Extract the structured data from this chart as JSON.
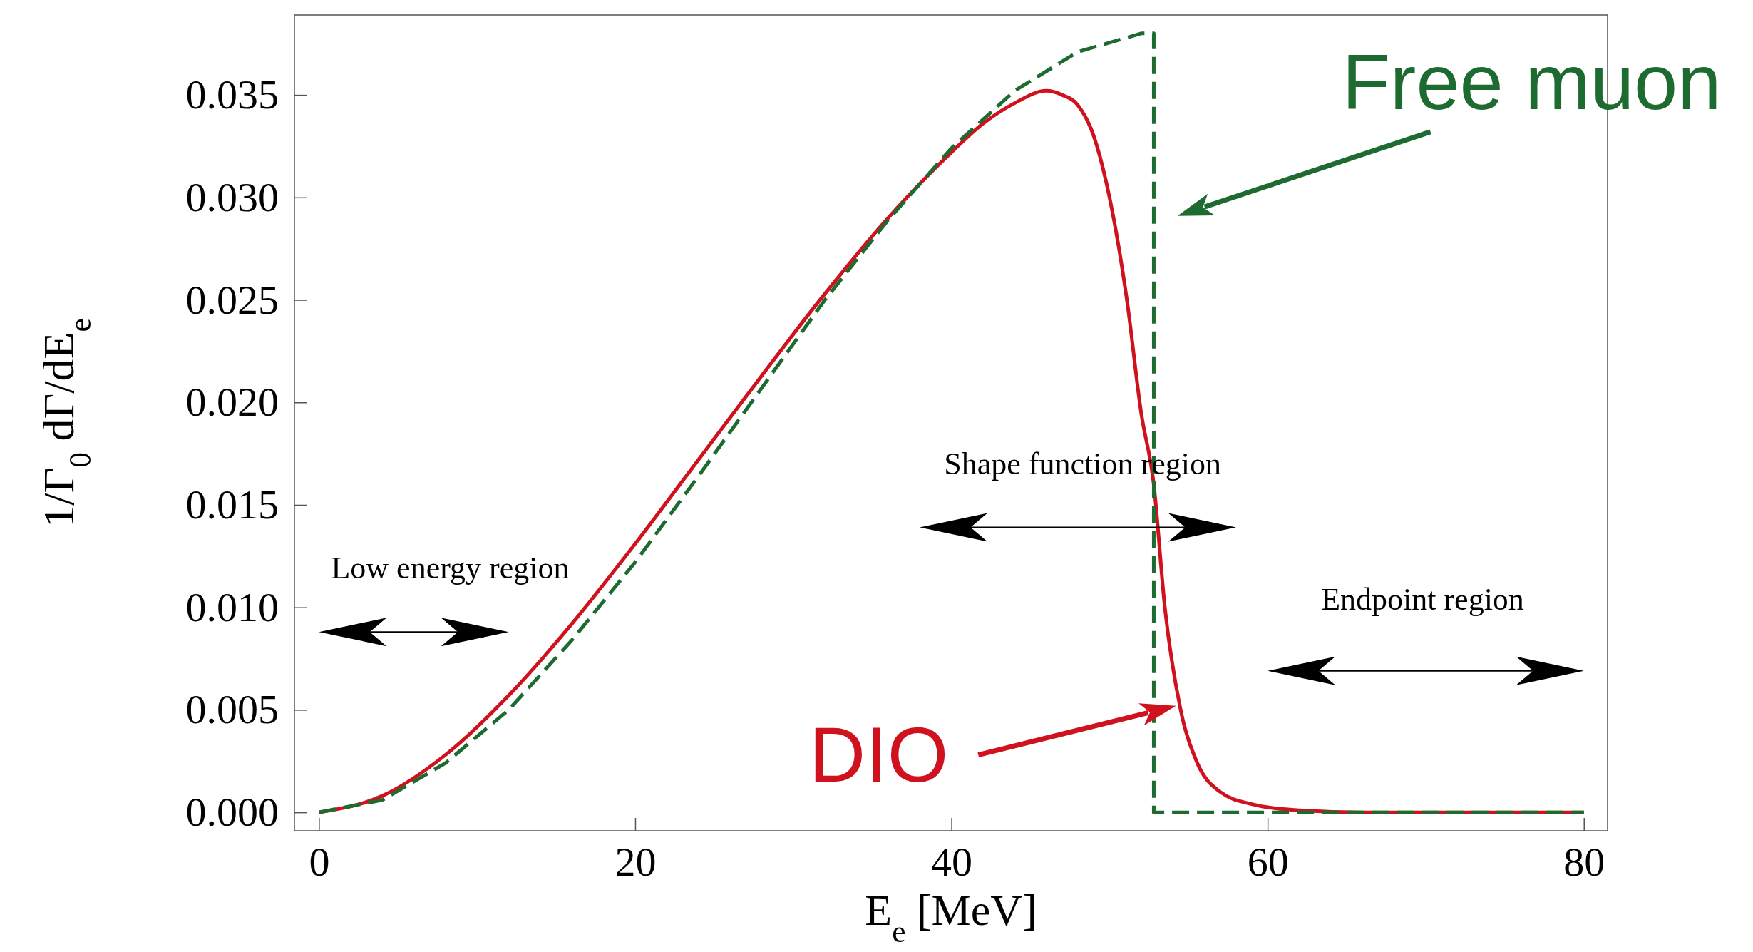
{
  "chart_data": {
    "type": "line",
    "xlabel": "E$_{e}$ [MeV]",
    "ylabel": "1/Γ$_{0}$ dΓ/dE$_{e}$",
    "xlim": [
      -1.55,
      81.5
    ],
    "ylim": [
      -0.0009,
      0.0389
    ],
    "xticks": [
      0,
      20,
      40,
      60,
      80
    ],
    "yticks": [
      {
        "value": 0,
        "label": "0.000"
      },
      {
        "value": 0.005,
        "label": "0.005"
      },
      {
        "value": 0.01,
        "label": "0.010"
      },
      {
        "value": 0.015,
        "label": "0.015"
      },
      {
        "value": 0.02,
        "label": "0.020"
      },
      {
        "value": 0.025,
        "label": "0.025"
      },
      {
        "value": 0.03,
        "label": "0.030"
      },
      {
        "value": 0.035,
        "label": "0.035"
      }
    ],
    "grid": false,
    "series": [
      {
        "name": "Free muon",
        "color": "#1e6b32",
        "line_style": "dashed",
        "x": [
          0,
          4,
          8,
          12,
          16,
          20,
          24,
          28,
          32,
          36,
          40,
          44,
          48,
          52,
          52.8,
          52.8,
          80
        ],
        "values": [
          0,
          0.0006,
          0.0024,
          0.005,
          0.0084,
          0.0122,
          0.0164,
          0.0207,
          0.025,
          0.0289,
          0.0324,
          0.0352,
          0.0371,
          0.038,
          0.038,
          0,
          0
        ]
      },
      {
        "name": "DIO",
        "color": "#d0121f",
        "line_style": "solid",
        "x": [
          0,
          4,
          8,
          12,
          16,
          20,
          24,
          28,
          32,
          36,
          40,
          42,
          44,
          46,
          47,
          48,
          49,
          50,
          51.1,
          52,
          52.8,
          53.5,
          54.5,
          55.5,
          57,
          59,
          62,
          66,
          80
        ],
        "values": [
          0,
          0.0008,
          0.0028,
          0.0057,
          0.0092,
          0.0131,
          0.0172,
          0.0213,
          0.0253,
          0.029,
          0.0322,
          0.0336,
          0.0346,
          0.0352,
          0.035,
          0.0345,
          0.033,
          0.03,
          0.025,
          0.0195,
          0.016,
          0.01,
          0.005,
          0.0025,
          0.001,
          0.0004,
          0.0001,
          0,
          0
        ]
      }
    ],
    "annotations": [
      "Low energy region",
      "Shape function region",
      "Endpoint region"
    ]
  }
}
